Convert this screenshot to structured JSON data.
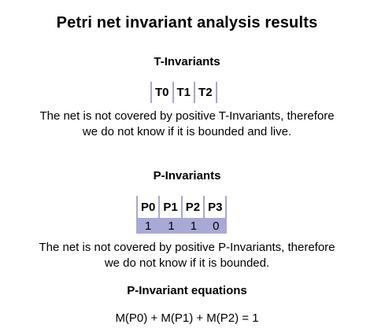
{
  "title": "Petri net invariant analysis results",
  "t_invariants": {
    "heading": "T-Invariants",
    "columns": [
      "T0",
      "T1",
      "T2"
    ],
    "rows": [],
    "message_line1": "The net is not covered by positive T-Invariants, therefore",
    "message_line2": "we do not know if it is bounded and live."
  },
  "p_invariants": {
    "heading": "P-Invariants",
    "columns": [
      "P0",
      "P1",
      "P2",
      "P3"
    ],
    "rows": [
      [
        "1",
        "1",
        "1",
        "0"
      ]
    ],
    "row_color": "#a9a9d6",
    "message_line1": "The net is not covered by positive P-Invariants, therefore",
    "message_line2": "we do not know if it is bounded."
  },
  "equations": {
    "heading": "P-Invariant equations",
    "items": [
      "M(P0) + M(P1) + M(P2) = 1"
    ]
  }
}
